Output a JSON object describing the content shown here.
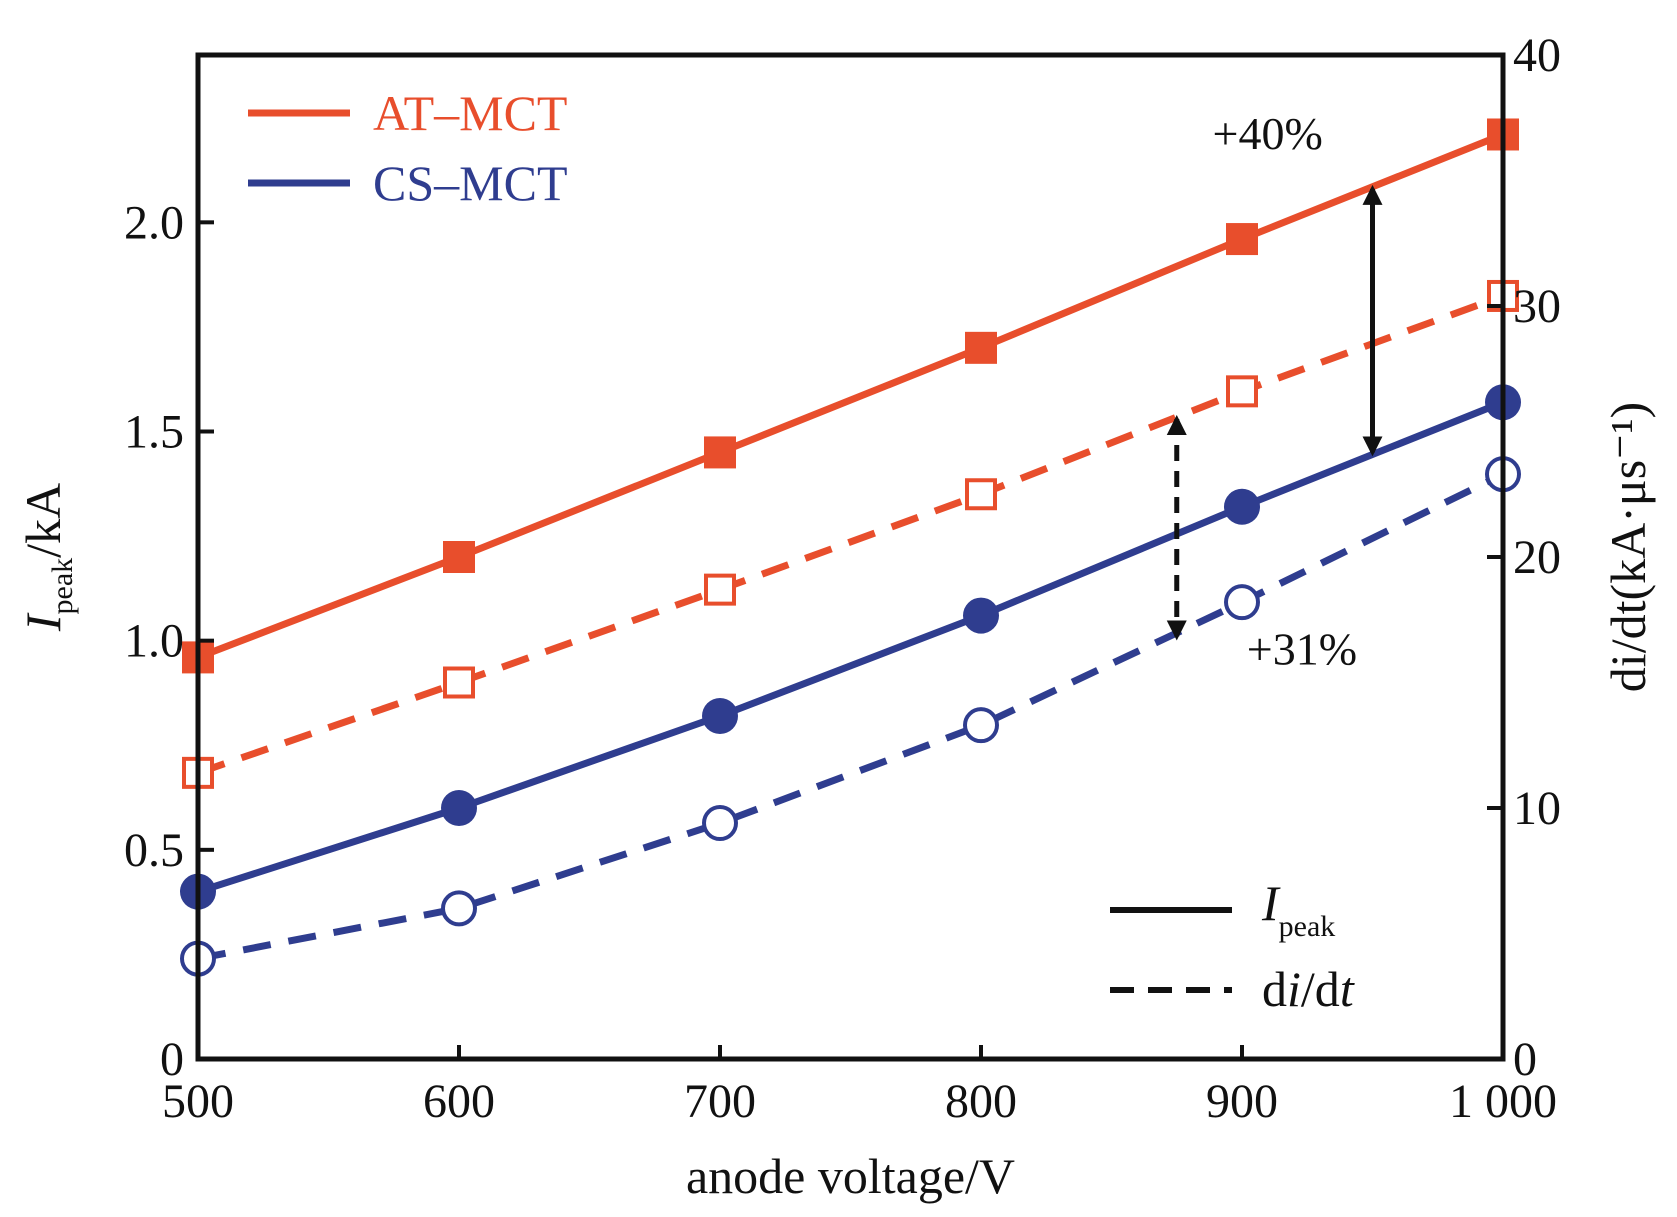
{
  "chart_data": {
    "type": "line",
    "xlabel": "anode voltage/V",
    "ylabel": {
      "main": "I",
      "sub": "peak",
      "unit": "/kA"
    },
    "y2label": "di/dt(kA·μs⁻¹)",
    "x": [
      500,
      600,
      700,
      800,
      900,
      1000
    ],
    "xlim": [
      500,
      1000
    ],
    "ylim": [
      0,
      2.4
    ],
    "y2lim": [
      0,
      40
    ],
    "xticks": [
      500,
      600,
      700,
      800,
      900,
      1000
    ],
    "xtick_labels": [
      "500",
      "600",
      "700",
      "800",
      "900",
      "1 000"
    ],
    "yticks": [
      0,
      0.5,
      1.0,
      1.5,
      2.0
    ],
    "ytick_labels": [
      "0",
      "0.5",
      "1.0",
      "1.5",
      "2.0"
    ],
    "y2ticks": [
      0,
      10,
      20,
      30,
      40
    ],
    "y2tick_labels": [
      "0",
      "10",
      "20",
      "30",
      "40"
    ],
    "grid": false,
    "series": [
      {
        "name": "AT–MCT",
        "metric": "Ipeak",
        "axis": "left",
        "color": "#e84e2c",
        "style": "solid",
        "marker": "square-filled",
        "values": [
          0.96,
          1.2,
          1.45,
          1.7,
          1.96,
          2.21
        ]
      },
      {
        "name": "AT–MCT",
        "metric": "di/dt",
        "axis": "right",
        "color": "#e84e2c",
        "style": "dashed",
        "marker": "square-open",
        "values": [
          11.4,
          15.0,
          18.7,
          22.5,
          26.6,
          30.4
        ]
      },
      {
        "name": "CS–MCT",
        "metric": "Ipeak",
        "axis": "left",
        "color": "#2f3d8f",
        "style": "solid",
        "marker": "circle-filled",
        "values": [
          0.4,
          0.6,
          0.82,
          1.06,
          1.32,
          1.57
        ]
      },
      {
        "name": "CS–MCT",
        "metric": "di/dt",
        "axis": "right",
        "color": "#2f3d8f",
        "style": "dashed",
        "marker": "circle-open",
        "values": [
          4.0,
          6.0,
          9.4,
          13.3,
          18.2,
          23.3
        ]
      }
    ],
    "legend": {
      "placement": "top-left",
      "items": [
        {
          "label": "AT–MCT",
          "color": "#e84e2c"
        },
        {
          "label": "CS–MCT",
          "color": "#2f3d8f"
        }
      ]
    },
    "legend2": {
      "placement": "bottom-right",
      "items": [
        {
          "main": "I",
          "sub": "peak",
          "style": "solid"
        },
        {
          "label_parts": [
            "d",
            "i",
            "/d",
            "t"
          ],
          "style": "dashed"
        }
      ]
    },
    "annotations": [
      {
        "text": "+40%",
        "x": 950,
        "y_from": 2.08,
        "y_to": 1.45,
        "style": "solid"
      },
      {
        "text": "+31%",
        "x": 875,
        "y_from": 1.53,
        "y_to": 1.01,
        "style": "dashed"
      }
    ]
  }
}
